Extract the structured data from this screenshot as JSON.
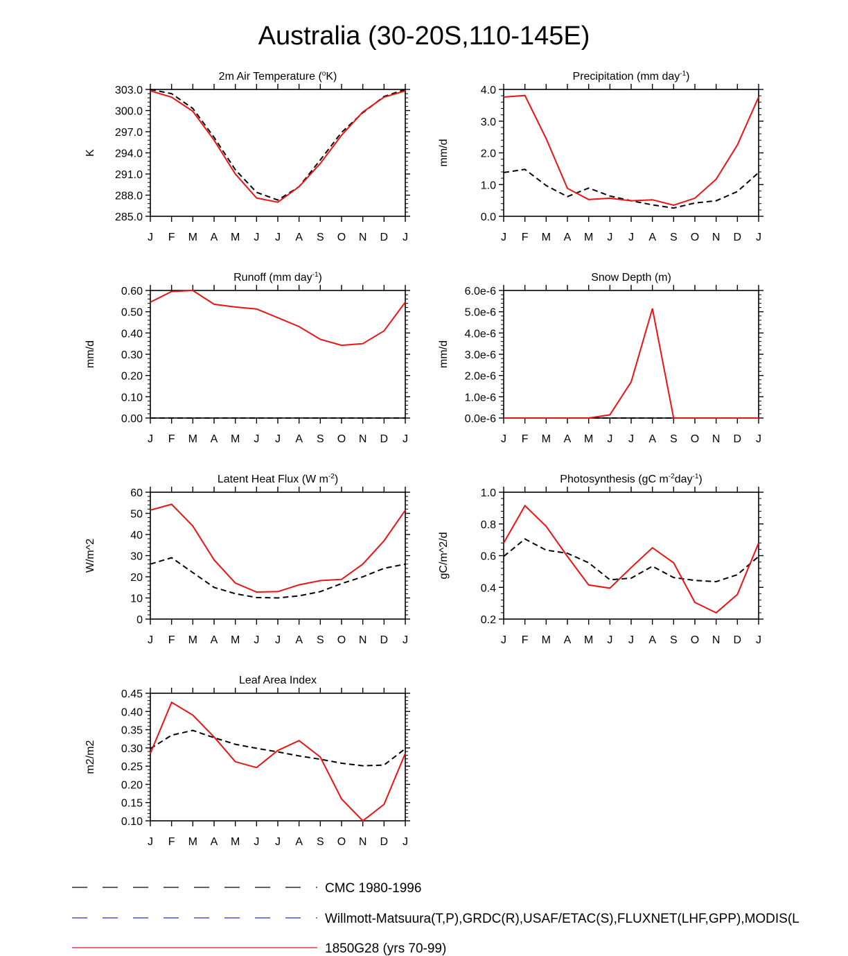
{
  "figure": {
    "title": "Australia (30-20S,110-145E)"
  },
  "legend": {
    "entries": [
      {
        "label": "CMC 1980-1996",
        "color": "#000000",
        "style": "dashed"
      },
      {
        "label": "Willmott-Matsuura(T,P),GRDC(R),USAF/ETAC(S),FLUXNET(LHF,GPP),MODIS(L",
        "color": "#2b2bd6",
        "style": "dashed"
      },
      {
        "label": "1850G28 (yrs 70-99)",
        "color": "#ee1111",
        "style": "solid"
      }
    ]
  },
  "chart_data": [
    {
      "type": "line",
      "title_parts": [
        "2m Air Temperature (",
        "o",
        "K)"
      ],
      "ylabel": "K",
      "ylim": [
        285.0,
        303.0
      ],
      "yticks": [
        285.0,
        288.0,
        291.0,
        294.0,
        297.0,
        300.0,
        303.0
      ],
      "ytick_labels": [
        "285.0",
        "288.0",
        "291.0",
        "294.0",
        "297.0",
        "300.0",
        "303.0"
      ],
      "categories": [
        "J",
        "F",
        "M",
        "A",
        "M",
        "J",
        "J",
        "A",
        "S",
        "O",
        "N",
        "D",
        "J"
      ],
      "series": [
        {
          "name": "1850G28 (yrs 70-99)",
          "color": "#ee1111",
          "dash": "",
          "values": [
            302.8,
            301.9,
            299.9,
            295.8,
            291.0,
            287.6,
            287.0,
            289.2,
            292.5,
            296.5,
            299.8,
            301.9,
            302.8
          ]
        },
        {
          "name": "CMC 1980-1996",
          "color": "#000000",
          "dash": "8,5",
          "values": [
            303.0,
            302.4,
            300.3,
            296.2,
            291.6,
            288.4,
            287.3,
            289.2,
            293.0,
            296.9,
            299.7,
            302.0,
            303.0
          ]
        }
      ]
    },
    {
      "type": "line",
      "title_parts": [
        "Precipitation (mm day",
        "-1",
        ")"
      ],
      "ylabel": "mm/d",
      "ylim": [
        0.0,
        4.0
      ],
      "yticks": [
        0.0,
        1.0,
        2.0,
        3.0,
        4.0
      ],
      "ytick_labels": [
        "0.0",
        "1.0",
        "2.0",
        "3.0",
        "4.0"
      ],
      "categories": [
        "J",
        "F",
        "M",
        "A",
        "M",
        "J",
        "J",
        "A",
        "S",
        "O",
        "N",
        "D",
        "J"
      ],
      "series": [
        {
          "name": "1850G28 (yrs 70-99)",
          "color": "#ee1111",
          "dash": "",
          "values": [
            3.76,
            3.81,
            2.45,
            0.88,
            0.53,
            0.57,
            0.49,
            0.52,
            0.35,
            0.57,
            1.17,
            2.25,
            3.76
          ]
        },
        {
          "name": "CMC 1980-1996",
          "color": "#000000",
          "dash": "8,5",
          "values": [
            1.38,
            1.48,
            0.97,
            0.62,
            0.89,
            0.64,
            0.49,
            0.36,
            0.26,
            0.42,
            0.49,
            0.78,
            1.38
          ]
        }
      ]
    },
    {
      "type": "line",
      "title_parts": [
        "Runoff (mm day",
        "-1",
        ")"
      ],
      "ylabel": "mm/d",
      "ylim": [
        0.0,
        0.6
      ],
      "yticks": [
        0.0,
        0.1,
        0.2,
        0.3,
        0.4,
        0.5,
        0.6
      ],
      "ytick_labels": [
        "0.00",
        "0.10",
        "0.20",
        "0.30",
        "0.40",
        "0.50",
        "0.60"
      ],
      "categories": [
        "J",
        "F",
        "M",
        "A",
        "M",
        "J",
        "J",
        "A",
        "S",
        "O",
        "N",
        "D",
        "J"
      ],
      "series": [
        {
          "name": "1850G28 (yrs 70-99)",
          "color": "#ee1111",
          "dash": "",
          "values": [
            0.545,
            0.595,
            0.6,
            0.535,
            0.522,
            0.513,
            0.472,
            0.43,
            0.37,
            0.342,
            0.35,
            0.41,
            0.545
          ]
        },
        {
          "name": "CMC 1980-1996",
          "color": "#000000",
          "dash": "8,5",
          "values": [
            0.0,
            0.0,
            0.0,
            0.0,
            0.0,
            0.0,
            0.0,
            0.0,
            0.0,
            0.0,
            0.0,
            0.0,
            0.0
          ]
        }
      ]
    },
    {
      "type": "line",
      "title_parts": [
        "Snow Depth (m)"
      ],
      "ylabel": "mm/d",
      "ylim": [
        0.0,
        6.0
      ],
      "yticks": [
        0.0,
        1.0,
        2.0,
        3.0,
        4.0,
        5.0,
        6.0
      ],
      "ytick_labels": [
        "0.0e-6",
        "1.0e-6",
        "2.0e-6",
        "3.0e-6",
        "4.0e-6",
        "5.0e-6",
        "6.0e-6"
      ],
      "unit_note": "values in units of 1e-6 m",
      "categories": [
        "J",
        "F",
        "M",
        "A",
        "M",
        "J",
        "J",
        "A",
        "S",
        "O",
        "N",
        "D",
        "J"
      ],
      "series": [
        {
          "name": "1850G28 (yrs 70-99)",
          "color": "#ee1111",
          "dash": "",
          "values": [
            0.0,
            0.0,
            0.0,
            0.0,
            0.0,
            0.15,
            1.7,
            5.15,
            0.0,
            0.0,
            0.0,
            0.0,
            0.0
          ]
        },
        {
          "name": "CMC 1980-1996",
          "color": "#000000",
          "dash": "8,5",
          "values": [
            0.0,
            0.0,
            0.0,
            0.0,
            0.0,
            0.0,
            0.0,
            0.0,
            0.0,
            0.0,
            0.0,
            0.0,
            0.0
          ]
        }
      ]
    },
    {
      "type": "line",
      "title_parts": [
        "Latent Heat Flux (W m",
        "-2",
        ")"
      ],
      "ylabel": "W/m^2",
      "ylim": [
        0,
        60
      ],
      "yticks": [
        0,
        10,
        20,
        30,
        40,
        50,
        60
      ],
      "ytick_labels": [
        "0",
        "10",
        "20",
        "30",
        "40",
        "50",
        "60"
      ],
      "categories": [
        "J",
        "F",
        "M",
        "A",
        "M",
        "J",
        "J",
        "A",
        "S",
        "O",
        "N",
        "D",
        "J"
      ],
      "series": [
        {
          "name": "1850G28 (yrs 70-99)",
          "color": "#ee1111",
          "dash": "",
          "values": [
            51.5,
            54.3,
            44.0,
            28.0,
            17.0,
            12.8,
            13.0,
            16.2,
            18.2,
            18.8,
            26.0,
            37.0,
            51.5
          ]
        },
        {
          "name": "CMC 1980-1996",
          "color": "#000000",
          "dash": "8,5",
          "values": [
            26.0,
            29.0,
            22.0,
            15.0,
            12.0,
            10.2,
            10.0,
            11.0,
            13.0,
            16.8,
            20.0,
            24.0,
            26.0
          ]
        }
      ]
    },
    {
      "type": "line",
      "title_parts": [
        "Photosynthesis (gC m",
        "-2",
        "day",
        "-1",
        ")"
      ],
      "ylabel": "gC/m^2/d",
      "ylim": [
        0.2,
        1.0
      ],
      "yticks": [
        0.2,
        0.4,
        0.6,
        0.8,
        1.0
      ],
      "ytick_labels": [
        "0.2",
        "0.4",
        "0.6",
        "0.8",
        "1.0"
      ],
      "categories": [
        "J",
        "F",
        "M",
        "A",
        "M",
        "J",
        "J",
        "A",
        "S",
        "O",
        "N",
        "D",
        "J"
      ],
      "series": [
        {
          "name": "1850G28 (yrs 70-99)",
          "color": "#ee1111",
          "dash": "",
          "values": [
            0.68,
            0.915,
            0.785,
            0.595,
            0.415,
            0.395,
            0.525,
            0.65,
            0.555,
            0.305,
            0.24,
            0.355,
            0.68
          ]
        },
        {
          "name": "CMC 1980-1996",
          "color": "#000000",
          "dash": "8,5",
          "values": [
            0.595,
            0.705,
            0.635,
            0.615,
            0.555,
            0.448,
            0.458,
            0.533,
            0.462,
            0.444,
            0.436,
            0.48,
            0.595
          ]
        }
      ]
    },
    {
      "type": "line",
      "title_parts": [
        "Leaf Area Index"
      ],
      "ylabel": "m2/m2",
      "ylim": [
        0.1,
        0.45
      ],
      "yticks": [
        0.1,
        0.15,
        0.2,
        0.25,
        0.3,
        0.35,
        0.4,
        0.45
      ],
      "ytick_labels": [
        "0.10",
        "0.15",
        "0.20",
        "0.25",
        "0.30",
        "0.35",
        "0.40",
        "0.45"
      ],
      "categories": [
        "J",
        "F",
        "M",
        "A",
        "M",
        "J",
        "J",
        "A",
        "S",
        "O",
        "N",
        "D",
        "J"
      ],
      "series": [
        {
          "name": "1850G28 (yrs 70-99)",
          "color": "#ee1111",
          "dash": "",
          "values": [
            0.285,
            0.425,
            0.39,
            0.33,
            0.262,
            0.246,
            0.293,
            0.32,
            0.275,
            0.16,
            0.1,
            0.145,
            0.285
          ]
        },
        {
          "name": "CMC 1980-1996",
          "color": "#000000",
          "dash": "8,5",
          "values": [
            0.298,
            0.335,
            0.348,
            0.328,
            0.31,
            0.299,
            0.289,
            0.278,
            0.269,
            0.258,
            0.251,
            0.253,
            0.298
          ]
        }
      ]
    }
  ]
}
